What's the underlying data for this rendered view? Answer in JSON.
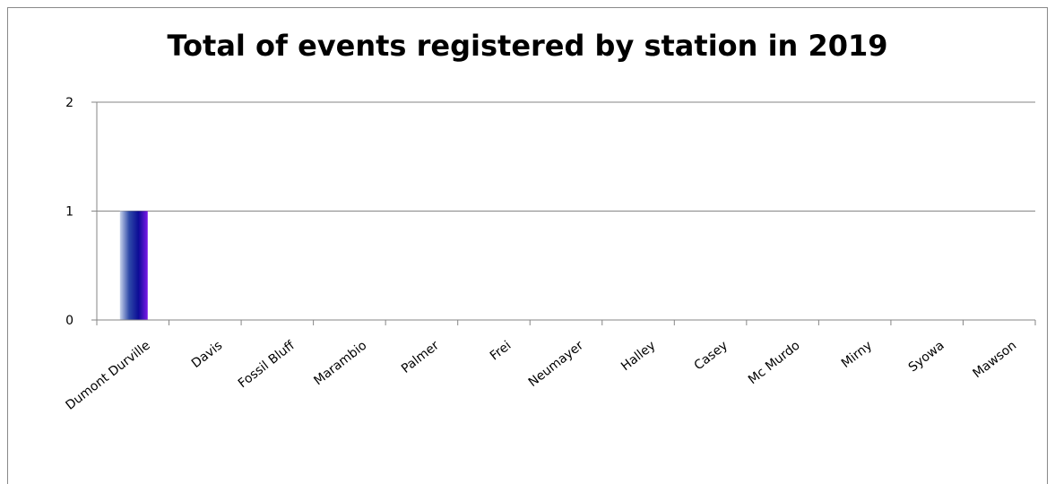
{
  "chart_data": {
    "type": "bar",
    "title": "Total of events registered by station in 2019",
    "xlabel": "",
    "ylabel": "",
    "categories": [
      "Dumont Durville",
      "Davis",
      "Fossil Bluff",
      "Marambio",
      "Palmer",
      "Frei",
      "Neumayer",
      "Halley",
      "Casey",
      "Mc Murdo",
      "Mirny",
      "Syowa",
      "Mawson"
    ],
    "values": [
      1,
      0,
      0,
      0,
      0,
      0,
      0,
      0,
      0,
      0,
      0,
      0,
      0
    ],
    "ylim": [
      0,
      2
    ],
    "yticks": [
      0,
      1,
      2
    ],
    "grid": true,
    "legend": "none",
    "bar_gradient": [
      "#c8d4ec",
      "#2e4aa8",
      "#0c0c96",
      "#7a18e8"
    ],
    "gridline_color": "#868686"
  }
}
